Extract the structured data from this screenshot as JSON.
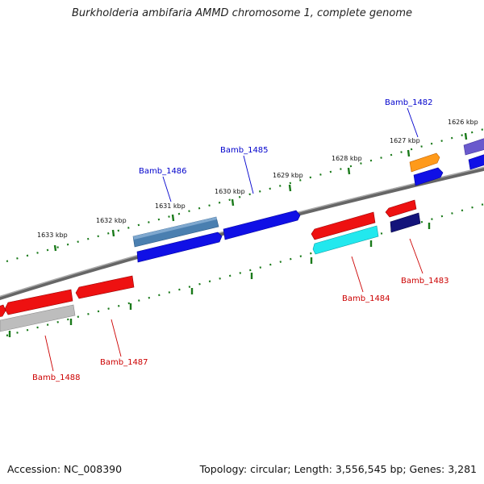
{
  "title": "Burkholderia ambifaria AMMD chromosome 1, complete genome",
  "footer": {
    "accession": "Accession: NC_008390",
    "summary": "Topology: circular; Length: 3,556,545 bp; Genes: 3,281"
  },
  "ticks": [
    "1633 kbp",
    "1632 kbp",
    "1631 kbp",
    "1630 kbp",
    "1629 kbp",
    "1628 kbp",
    "1627 kbp",
    "1626 kbp"
  ],
  "genes_top": [
    "Bamb_1486",
    "Bamb_1485",
    "Bamb_1482"
  ],
  "genes_bottom": [
    "Bamb_1488",
    "Bamb_1487",
    "Bamb_1484",
    "Bamb_1483"
  ],
  "colors": {
    "forward_label": "#0000cc",
    "reverse_label": "#cc0000",
    "tick": "#1a7a1a",
    "backbone": "#7a7a7a"
  }
}
